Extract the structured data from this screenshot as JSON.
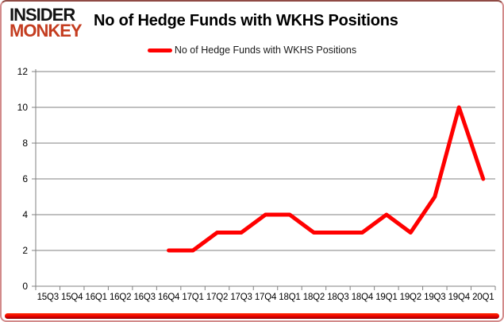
{
  "logo": {
    "line1": "INSIDER",
    "line2": "MONKEY"
  },
  "header": {
    "title": "No of Hedge Funds with WKHS Positions"
  },
  "legend": {
    "label": "No of Hedge Funds with WKHS Positions"
  },
  "colors": {
    "line": "#ff0000",
    "grid": "#808080",
    "axis": "#808080",
    "tick_label": "#000000",
    "logo_accent": "#c43d20",
    "bottom_bar": "#ee1c00"
  },
  "chart_data": {
    "type": "line",
    "title": "No of Hedge Funds with WKHS Positions",
    "categories": [
      "15Q3",
      "15Q4",
      "16Q1",
      "16Q2",
      "16Q3",
      "16Q4",
      "17Q1",
      "17Q2",
      "17Q3",
      "17Q4",
      "18Q1",
      "18Q2",
      "18Q3",
      "18Q4",
      "19Q1",
      "19Q2",
      "19Q3",
      "19Q4",
      "20Q1"
    ],
    "series": [
      {
        "name": "No of Hedge Funds with WKHS Positions",
        "color": "#ff0000",
        "values": [
          null,
          null,
          null,
          null,
          null,
          2,
          2,
          3,
          3,
          4,
          4,
          3,
          3,
          3,
          4,
          3,
          5,
          10,
          6
        ]
      }
    ],
    "xlabel": "",
    "ylabel": "",
    "ylim": [
      0,
      12
    ],
    "yticks": [
      0,
      2,
      4,
      6,
      8,
      10,
      12
    ],
    "grid": "horizontal",
    "legend_position": "top"
  }
}
